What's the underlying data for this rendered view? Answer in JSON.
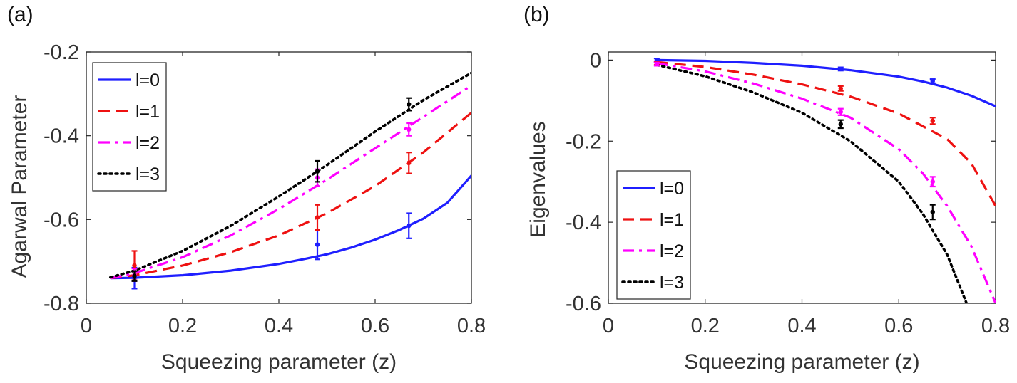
{
  "chart_data": [
    {
      "panel": "(a)",
      "type": "line",
      "xlabel": "Squeezing parameter (z)",
      "ylabel": "Agarwal Parameter",
      "xlim": [
        0,
        0.8
      ],
      "ylim": [
        -0.8,
        -0.2
      ],
      "xticks": [
        0,
        0.2,
        0.4,
        0.6,
        0.8
      ],
      "xtick_labels": [
        "0",
        "0.2",
        "0.4",
        "0.6",
        "0.8"
      ],
      "yticks": [
        -0.8,
        -0.6,
        -0.4,
        -0.2
      ],
      "ytick_labels": [
        "-0.8",
        "-0.6",
        "-0.4",
        "-0.2"
      ],
      "legend_position": "top-left",
      "series": [
        {
          "name": "l=0",
          "color": "#1f1fff",
          "dash": "solid",
          "x": [
            0.05,
            0.1,
            0.2,
            0.3,
            0.4,
            0.45,
            0.5,
            0.55,
            0.6,
            0.65,
            0.7,
            0.75,
            0.8
          ],
          "y": [
            -0.74,
            -0.739,
            -0.733,
            -0.722,
            -0.706,
            -0.695,
            -0.683,
            -0.667,
            -0.648,
            -0.625,
            -0.598,
            -0.56,
            -0.495
          ]
        },
        {
          "name": "l=1",
          "color": "#ee1111",
          "dash": "dashed",
          "x": [
            0.05,
            0.1,
            0.2,
            0.3,
            0.4,
            0.5,
            0.6,
            0.7,
            0.8
          ],
          "y": [
            -0.74,
            -0.733,
            -0.71,
            -0.678,
            -0.638,
            -0.585,
            -0.52,
            -0.44,
            -0.345
          ]
        },
        {
          "name": "l=2",
          "color": "#ff00ff",
          "dash": "dashdot",
          "x": [
            0.05,
            0.1,
            0.2,
            0.3,
            0.4,
            0.5,
            0.6,
            0.7,
            0.8
          ],
          "y": [
            -0.74,
            -0.728,
            -0.69,
            -0.638,
            -0.575,
            -0.505,
            -0.43,
            -0.355,
            -0.28
          ]
        },
        {
          "name": "l=3",
          "color": "#000000",
          "dash": "dotted",
          "x": [
            0.05,
            0.1,
            0.2,
            0.3,
            0.4,
            0.5,
            0.6,
            0.7,
            0.8
          ],
          "y": [
            -0.738,
            -0.722,
            -0.675,
            -0.615,
            -0.545,
            -0.47,
            -0.39,
            -0.315,
            -0.25
          ]
        }
      ],
      "error_points": [
        {
          "series": "l=0",
          "x": 0.1,
          "y": -0.74,
          "err": 0.025
        },
        {
          "series": "l=0",
          "x": 0.48,
          "y": -0.66,
          "err": 0.035
        },
        {
          "series": "l=0",
          "x": 0.67,
          "y": -0.615,
          "err": 0.03
        },
        {
          "series": "l=1",
          "x": 0.1,
          "y": -0.71,
          "err": 0.035
        },
        {
          "series": "l=1",
          "x": 0.48,
          "y": -0.595,
          "err": 0.03
        },
        {
          "series": "l=1",
          "x": 0.67,
          "y": -0.465,
          "err": 0.025
        },
        {
          "series": "l=2",
          "x": 0.1,
          "y": -0.732,
          "err": 0.015
        },
        {
          "series": "l=2",
          "x": 0.48,
          "y": -0.5,
          "err": 0.02
        },
        {
          "series": "l=2",
          "x": 0.67,
          "y": -0.385,
          "err": 0.015
        },
        {
          "series": "l=3",
          "x": 0.1,
          "y": -0.735,
          "err": 0.012
        },
        {
          "series": "l=3",
          "x": 0.48,
          "y": -0.485,
          "err": 0.025
        },
        {
          "series": "l=3",
          "x": 0.67,
          "y": -0.325,
          "err": 0.015
        }
      ]
    },
    {
      "panel": "(b)",
      "type": "line",
      "xlabel": "Squeezing parameter (z)",
      "ylabel": "Eigenvalues",
      "xlim": [
        0,
        0.8
      ],
      "ylim": [
        -0.6,
        0.02
      ],
      "xticks": [
        0,
        0.2,
        0.4,
        0.6,
        0.8
      ],
      "xtick_labels": [
        "0",
        "0.2",
        "0.4",
        "0.6",
        "0.8"
      ],
      "yticks": [
        -0.6,
        -0.4,
        -0.2,
        0
      ],
      "ytick_labels": [
        "-0.6",
        "-0.4",
        "-0.2",
        "0"
      ],
      "legend_position": "bottom-left",
      "series": [
        {
          "name": "l=0",
          "color": "#1f1fff",
          "dash": "solid",
          "x": [
            0.1,
            0.2,
            0.3,
            0.4,
            0.5,
            0.6,
            0.65,
            0.7,
            0.75,
            0.8
          ],
          "y": [
            0.0,
            -0.002,
            -0.007,
            -0.014,
            -0.025,
            -0.041,
            -0.053,
            -0.068,
            -0.088,
            -0.114
          ]
        },
        {
          "name": "l=1",
          "color": "#ee1111",
          "dash": "dashed",
          "x": [
            0.1,
            0.2,
            0.3,
            0.4,
            0.5,
            0.6,
            0.7,
            0.75,
            0.8
          ],
          "y": [
            -0.005,
            -0.017,
            -0.036,
            -0.06,
            -0.09,
            -0.132,
            -0.195,
            -0.255,
            -0.36
          ]
        },
        {
          "name": "l=2",
          "color": "#ff00ff",
          "dash": "dashdot",
          "x": [
            0.1,
            0.2,
            0.3,
            0.4,
            0.5,
            0.6,
            0.65,
            0.7,
            0.75,
            0.8
          ],
          "y": [
            -0.008,
            -0.028,
            -0.058,
            -0.095,
            -0.142,
            -0.22,
            -0.28,
            -0.36,
            -0.46,
            -0.6
          ]
        },
        {
          "name": "l=3",
          "color": "#000000",
          "dash": "dotted",
          "x": [
            0.1,
            0.2,
            0.3,
            0.4,
            0.5,
            0.6,
            0.65,
            0.7,
            0.74
          ],
          "y": [
            -0.012,
            -0.04,
            -0.08,
            -0.13,
            -0.2,
            -0.3,
            -0.38,
            -0.48,
            -0.6
          ]
        }
      ],
      "error_points": [
        {
          "series": "l=0",
          "x": 0.1,
          "y": 0.0,
          "err": 0.004
        },
        {
          "series": "l=0",
          "x": 0.48,
          "y": -0.022,
          "err": 0.004
        },
        {
          "series": "l=0",
          "x": 0.67,
          "y": -0.052,
          "err": 0.005
        },
        {
          "series": "l=1",
          "x": 0.1,
          "y": -0.008,
          "err": 0.004
        },
        {
          "series": "l=1",
          "x": 0.48,
          "y": -0.07,
          "err": 0.006
        },
        {
          "series": "l=1",
          "x": 0.67,
          "y": -0.15,
          "err": 0.008
        },
        {
          "series": "l=2",
          "x": 0.1,
          "y": -0.01,
          "err": 0.004
        },
        {
          "series": "l=2",
          "x": 0.48,
          "y": -0.128,
          "err": 0.008
        },
        {
          "series": "l=2",
          "x": 0.67,
          "y": -0.3,
          "err": 0.012
        },
        {
          "series": "l=3",
          "x": 0.48,
          "y": -0.158,
          "err": 0.01
        },
        {
          "series": "l=3",
          "x": 0.67,
          "y": -0.375,
          "err": 0.018
        }
      ]
    }
  ]
}
